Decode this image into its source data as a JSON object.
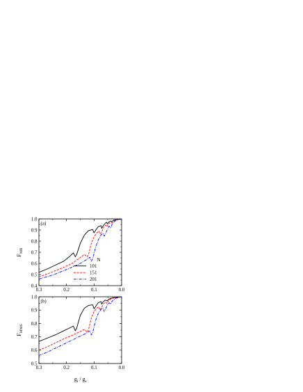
{
  "xlabel": {
    "main": "g",
    "sub_main": "i",
    "sep": " / ",
    "denom": "g",
    "sub_denom": "c"
  },
  "legend": {
    "title": "N",
    "items": [
      {
        "label": "101",
        "color": "#000000",
        "dash": "solid"
      },
      {
        "label": "151",
        "color": "#ff0000",
        "dash": "dash"
      },
      {
        "label": "201",
        "color": "#0000ff",
        "dash": "dashdot"
      }
    ]
  },
  "chart_data": [
    {
      "type": "line",
      "panel_label": "(a)",
      "ylabel": {
        "main": "F",
        "sub": "MR"
      },
      "xlim": [
        0.3,
        0.0
      ],
      "ylim": [
        0.4,
        1.0
      ],
      "xticks": [
        "0.3",
        "0.2",
        "0.1",
        "0.0"
      ],
      "yticks": [
        "0.4",
        "0.5",
        "0.6",
        "0.7",
        "0.8",
        "0.9",
        "1.0"
      ],
      "series": [
        {
          "name": "101",
          "color": "#000000",
          "points": [
            [
              0.3,
              0.52
            ],
            [
              0.27,
              0.55
            ],
            [
              0.24,
              0.585
            ],
            [
              0.21,
              0.62
            ],
            [
              0.19,
              0.66
            ],
            [
              0.175,
              0.695
            ],
            [
              0.168,
              0.66
            ],
            [
              0.163,
              0.68
            ],
            [
              0.15,
              0.78
            ],
            [
              0.135,
              0.855
            ],
            [
              0.12,
              0.895
            ],
            [
              0.105,
              0.905
            ],
            [
              0.1,
              0.875
            ],
            [
              0.095,
              0.895
            ],
            [
              0.085,
              0.93
            ],
            [
              0.075,
              0.94
            ],
            [
              0.072,
              0.915
            ],
            [
              0.068,
              0.935
            ],
            [
              0.06,
              0.96
            ],
            [
              0.055,
              0.97
            ],
            [
              0.052,
              0.955
            ],
            [
              0.048,
              0.97
            ],
            [
              0.04,
              0.982
            ],
            [
              0.035,
              0.975
            ],
            [
              0.03,
              0.988
            ],
            [
              0.02,
              0.995
            ],
            [
              0.0,
              1.0
            ]
          ]
        },
        {
          "name": "151",
          "color": "#ff0000",
          "points": [
            [
              0.3,
              0.48
            ],
            [
              0.27,
              0.505
            ],
            [
              0.24,
              0.535
            ],
            [
              0.21,
              0.565
            ],
            [
              0.18,
              0.6
            ],
            [
              0.16,
              0.635
            ],
            [
              0.135,
              0.68
            ],
            [
              0.125,
              0.66
            ],
            [
              0.12,
              0.68
            ],
            [
              0.11,
              0.78
            ],
            [
              0.1,
              0.84
            ],
            [
              0.09,
              0.875
            ],
            [
              0.083,
              0.89
            ],
            [
              0.078,
              0.865
            ],
            [
              0.073,
              0.88
            ],
            [
              0.065,
              0.925
            ],
            [
              0.058,
              0.945
            ],
            [
              0.053,
              0.93
            ],
            [
              0.048,
              0.955
            ],
            [
              0.04,
              0.972
            ],
            [
              0.035,
              0.965
            ],
            [
              0.03,
              0.98
            ],
            [
              0.02,
              0.992
            ],
            [
              0.0,
              1.0
            ]
          ]
        },
        {
          "name": "201",
          "color": "#0000ff",
          "points": [
            [
              0.3,
              0.46
            ],
            [
              0.27,
              0.48
            ],
            [
              0.24,
              0.505
            ],
            [
              0.21,
              0.535
            ],
            [
              0.18,
              0.565
            ],
            [
              0.15,
              0.6
            ],
            [
              0.13,
              0.63
            ],
            [
              0.115,
              0.655
            ],
            [
              0.11,
              0.62
            ],
            [
              0.105,
              0.64
            ],
            [
              0.095,
              0.74
            ],
            [
              0.085,
              0.81
            ],
            [
              0.075,
              0.855
            ],
            [
              0.068,
              0.87
            ],
            [
              0.063,
              0.845
            ],
            [
              0.058,
              0.87
            ],
            [
              0.05,
              0.915
            ],
            [
              0.045,
              0.935
            ],
            [
              0.04,
              0.92
            ],
            [
              0.035,
              0.95
            ],
            [
              0.028,
              0.972
            ],
            [
              0.02,
              0.988
            ],
            [
              0.0,
              1.0
            ]
          ]
        }
      ]
    },
    {
      "type": "line",
      "panel_label": "(b)",
      "ylabel": {
        "main": "F",
        "sub": "MMS"
      },
      "xlim": [
        0.3,
        0.0
      ],
      "ylim": [
        0.5,
        1.0
      ],
      "xticks": [
        "0.3",
        "0.2",
        "0.1",
        "0.0"
      ],
      "yticks": [
        "0.5",
        "0.6",
        "0.7",
        "0.8",
        "0.9",
        "1.0"
      ],
      "series": [
        {
          "name": "101",
          "color": "#000000",
          "points": [
            [
              0.3,
              0.665
            ],
            [
              0.27,
              0.69
            ],
            [
              0.24,
              0.715
            ],
            [
              0.21,
              0.745
            ],
            [
              0.19,
              0.765
            ],
            [
              0.175,
              0.78
            ],
            [
              0.168,
              0.745
            ],
            [
              0.163,
              0.765
            ],
            [
              0.15,
              0.86
            ],
            [
              0.135,
              0.915
            ],
            [
              0.12,
              0.935
            ],
            [
              0.105,
              0.94
            ],
            [
              0.1,
              0.91
            ],
            [
              0.095,
              0.925
            ],
            [
              0.085,
              0.955
            ],
            [
              0.075,
              0.965
            ],
            [
              0.072,
              0.945
            ],
            [
              0.068,
              0.96
            ],
            [
              0.06,
              0.975
            ],
            [
              0.052,
              0.97
            ],
            [
              0.048,
              0.98
            ],
            [
              0.04,
              0.988
            ],
            [
              0.03,
              0.993
            ],
            [
              0.0,
              1.0
            ]
          ]
        },
        {
          "name": "151",
          "color": "#ff0000",
          "points": [
            [
              0.3,
              0.6
            ],
            [
              0.27,
              0.625
            ],
            [
              0.24,
              0.655
            ],
            [
              0.21,
              0.685
            ],
            [
              0.18,
              0.71
            ],
            [
              0.16,
              0.73
            ],
            [
              0.135,
              0.755
            ],
            [
              0.125,
              0.735
            ],
            [
              0.12,
              0.755
            ],
            [
              0.11,
              0.84
            ],
            [
              0.1,
              0.89
            ],
            [
              0.09,
              0.915
            ],
            [
              0.083,
              0.925
            ],
            [
              0.078,
              0.9
            ],
            [
              0.073,
              0.92
            ],
            [
              0.065,
              0.95
            ],
            [
              0.058,
              0.96
            ],
            [
              0.053,
              0.95
            ],
            [
              0.048,
              0.97
            ],
            [
              0.04,
              0.982
            ],
            [
              0.03,
              0.99
            ],
            [
              0.0,
              1.0
            ]
          ]
        },
        {
          "name": "201",
          "color": "#0000ff",
          "points": [
            [
              0.3,
              0.56
            ],
            [
              0.27,
              0.585
            ],
            [
              0.24,
              0.615
            ],
            [
              0.21,
              0.645
            ],
            [
              0.18,
              0.675
            ],
            [
              0.15,
              0.705
            ],
            [
              0.13,
              0.725
            ],
            [
              0.115,
              0.745
            ],
            [
              0.11,
              0.715
            ],
            [
              0.105,
              0.73
            ],
            [
              0.095,
              0.82
            ],
            [
              0.085,
              0.875
            ],
            [
              0.075,
              0.905
            ],
            [
              0.068,
              0.915
            ],
            [
              0.063,
              0.89
            ],
            [
              0.058,
              0.91
            ],
            [
              0.05,
              0.945
            ],
            [
              0.045,
              0.955
            ],
            [
              0.04,
              0.945
            ],
            [
              0.035,
              0.965
            ],
            [
              0.028,
              0.98
            ],
            [
              0.02,
              0.99
            ],
            [
              0.0,
              1.0
            ]
          ]
        }
      ]
    }
  ]
}
